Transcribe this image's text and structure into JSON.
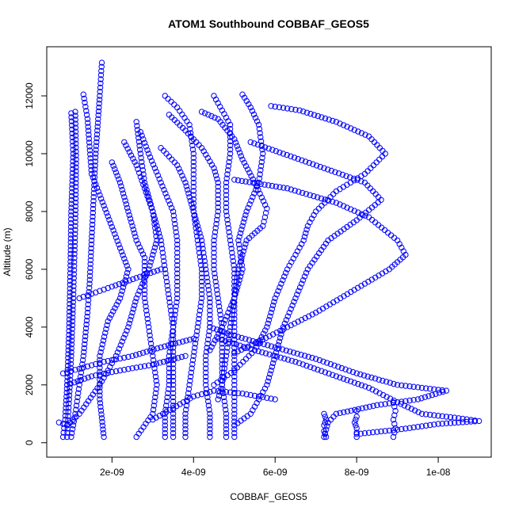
{
  "chart_data": {
    "type": "scatter",
    "title": "ATOM1 Southbound COBBAF_GEOS5",
    "xlabel": "COBBAF_GEOS5",
    "ylabel": "Altitude (m)",
    "xlim": [
      4e-10,
      1.13e-08
    ],
    "ylim": [
      -500,
      13700
    ],
    "xticks": [
      2e-09,
      4e-09,
      6e-09,
      8e-09,
      1e-08
    ],
    "xtick_labels": [
      "2e-09",
      "4e-09",
      "6e-09",
      "8e-09",
      "1e-08"
    ],
    "yticks": [
      0,
      2000,
      4000,
      6000,
      8000,
      10000,
      12000
    ],
    "ytick_labels": [
      "0",
      "2000",
      "4000",
      "6000",
      "8000",
      "10000",
      "12000"
    ],
    "marker_color": "#0000ff",
    "marker": "open-circle",
    "profiles": [
      {
        "points": [
          [
            1.75e-09,
            13150
          ],
          [
            1.7e-09,
            12000
          ],
          [
            1.6e-09,
            10000
          ],
          [
            1.55e-09,
            8500
          ],
          [
            1.5e-09,
            7000
          ],
          [
            1.45e-09,
            5500
          ],
          [
            1.4e-09,
            4500
          ],
          [
            1.3e-09,
            3000
          ],
          [
            1.2e-09,
            2000
          ],
          [
            1.1e-09,
            1000
          ],
          [
            1e-09,
            200
          ]
        ]
      },
      {
        "points": [
          [
            1e-09,
            11400
          ],
          [
            1.05e-09,
            10000
          ],
          [
            1e-09,
            8000
          ],
          [
            9.8e-10,
            6000
          ],
          [
            9.5e-10,
            4000
          ],
          [
            9e-10,
            2000
          ],
          [
            8.5e-10,
            800
          ],
          [
            8e-10,
            200
          ]
        ]
      },
      {
        "points": [
          [
            1.1e-09,
            11450
          ],
          [
            1.12e-09,
            9800
          ],
          [
            1.1e-09,
            7500
          ],
          [
            1.05e-09,
            5000
          ],
          [
            1e-09,
            3000
          ],
          [
            9.5e-10,
            1500
          ],
          [
            9e-10,
            200
          ]
        ]
      },
      {
        "points": [
          [
            1.3e-09,
            12050
          ],
          [
            1.4e-09,
            11200
          ],
          [
            1.5e-09,
            9300
          ],
          [
            1.8e-09,
            8200
          ],
          [
            2.1e-09,
            7100
          ],
          [
            2.4e-09,
            6000
          ],
          [
            2.2e-09,
            5000
          ],
          [
            1.9e-09,
            4200
          ],
          [
            1.7e-09,
            3000
          ],
          [
            1.7e-09,
            1500
          ],
          [
            1.8e-09,
            200
          ]
        ]
      },
      {
        "points": [
          [
            2e-09,
            9700
          ],
          [
            2.2e-09,
            9000
          ],
          [
            2.4e-09,
            8000
          ],
          [
            2.6e-09,
            7000
          ],
          [
            2.8e-09,
            6400
          ],
          [
            2.8e-09,
            5000
          ],
          [
            2.9e-09,
            4000
          ],
          [
            3e-09,
            3000
          ],
          [
            3.1e-09,
            2000
          ],
          [
            3e-09,
            1000
          ],
          [
            2.6e-09,
            200
          ]
        ]
      },
      {
        "points": [
          [
            2.3e-09,
            10400
          ],
          [
            2.6e-09,
            9600
          ],
          [
            2.8e-09,
            8800
          ],
          [
            3e-09,
            8000
          ],
          [
            3.1e-09,
            7000
          ],
          [
            2.9e-09,
            6000
          ],
          [
            2.6e-09,
            5000
          ],
          [
            2.4e-09,
            4000
          ],
          [
            2.1e-09,
            3000
          ],
          [
            1.7e-09,
            2000
          ],
          [
            1.2e-09,
            1000
          ],
          [
            9e-10,
            600
          ],
          [
            7e-10,
            700
          ]
        ]
      },
      {
        "points": [
          [
            2.6e-09,
            11100
          ],
          [
            2.7e-09,
            10000
          ],
          [
            2.8e-09,
            9000
          ],
          [
            3e-09,
            8000
          ],
          [
            3.2e-09,
            7000
          ],
          [
            3.3e-09,
            6000
          ],
          [
            3.4e-09,
            5000
          ],
          [
            3.5e-09,
            4000
          ],
          [
            3.4e-09,
            3000
          ],
          [
            3.4e-09,
            2000
          ],
          [
            3.3e-09,
            1000
          ],
          [
            3.3e-09,
            200
          ]
        ]
      },
      {
        "points": [
          [
            2.7e-09,
            10750
          ],
          [
            2.9e-09,
            10000
          ],
          [
            3.2e-09,
            9000
          ],
          [
            3.5e-09,
            8000
          ],
          [
            3.6e-09,
            7000
          ],
          [
            3.6e-09,
            6000
          ],
          [
            3.6e-09,
            5000
          ],
          [
            3.5e-09,
            4000
          ],
          [
            3.5e-09,
            3000
          ],
          [
            3.5e-09,
            2000
          ],
          [
            3.5e-09,
            1000
          ],
          [
            3.5e-09,
            200
          ]
        ]
      },
      {
        "points": [
          [
            3.3e-09,
            12000
          ],
          [
            3.6e-09,
            11600
          ],
          [
            3.9e-09,
            11000
          ],
          [
            4e-09,
            10000
          ],
          [
            4e-09,
            9000
          ],
          [
            4e-09,
            8000
          ],
          [
            4.1e-09,
            7000
          ],
          [
            4.2e-09,
            6000
          ],
          [
            4.2e-09,
            5000
          ],
          [
            4.1e-09,
            4000
          ],
          [
            4e-09,
            3000
          ],
          [
            3.9e-09,
            2000
          ],
          [
            3.8e-09,
            1000
          ],
          [
            3.8e-09,
            200
          ]
        ]
      },
      {
        "points": [
          [
            3.2e-09,
            10200
          ],
          [
            3.6e-09,
            9600
          ],
          [
            3.8e-09,
            9000
          ],
          [
            4e-09,
            8000
          ],
          [
            4.2e-09,
            7000
          ],
          [
            4.3e-09,
            6000
          ],
          [
            4.4e-09,
            5000
          ],
          [
            4.4e-09,
            4000
          ],
          [
            4.3e-09,
            3000
          ],
          [
            4.3e-09,
            2000
          ],
          [
            4.4e-09,
            1000
          ],
          [
            4.4e-09,
            200
          ]
        ]
      },
      {
        "points": [
          [
            3.4e-09,
            11350
          ],
          [
            3.8e-09,
            10800
          ],
          [
            4.2e-09,
            10200
          ],
          [
            4.5e-09,
            9500
          ],
          [
            4.6e-09,
            9000
          ],
          [
            4.6e-09,
            8000
          ],
          [
            4.5e-09,
            7000
          ],
          [
            4.5e-09,
            6000
          ],
          [
            4.6e-09,
            5000
          ],
          [
            4.7e-09,
            4000
          ],
          [
            4.7e-09,
            3000
          ],
          [
            4.7e-09,
            2000
          ],
          [
            4.8e-09,
            1000
          ],
          [
            4.8e-09,
            200
          ]
        ]
      },
      {
        "points": [
          [
            4.5e-09,
            12000
          ],
          [
            4.7e-09,
            11500
          ],
          [
            4.9e-09,
            11000
          ],
          [
            4.9e-09,
            10000
          ],
          [
            4.8e-09,
            9000
          ],
          [
            4.8e-09,
            8000
          ],
          [
            4.9e-09,
            7000
          ],
          [
            5e-09,
            6000
          ],
          [
            5e-09,
            5000
          ],
          [
            4.9e-09,
            4000
          ],
          [
            4.8e-09,
            3000
          ],
          [
            4.7e-09,
            2000
          ],
          [
            4.6e-09,
            1500
          ]
        ]
      },
      {
        "points": [
          [
            4.2e-09,
            11450
          ],
          [
            4.6e-09,
            11200
          ],
          [
            5e-09,
            10500
          ],
          [
            5.2e-09,
            9800
          ],
          [
            5.5e-09,
            9000
          ],
          [
            5.8e-09,
            8100
          ],
          [
            5.7e-09,
            7500
          ],
          [
            5.3e-09,
            7000
          ],
          [
            5.1e-09,
            6000
          ],
          [
            5e-09,
            5000
          ],
          [
            5e-09,
            4000
          ],
          [
            5e-09,
            3000
          ],
          [
            5e-09,
            2000
          ],
          [
            5e-09,
            1000
          ],
          [
            5e-09,
            200
          ]
        ]
      },
      {
        "points": [
          [
            5.2e-09,
            12050
          ],
          [
            5.4e-09,
            11600
          ],
          [
            5.6e-09,
            11000
          ],
          [
            5.7e-09,
            10000
          ],
          [
            5.6e-09,
            9000
          ],
          [
            5.3e-09,
            8000
          ],
          [
            5.1e-09,
            7000
          ],
          [
            5.2e-09,
            6000
          ],
          [
            5e-09,
            5000
          ],
          [
            4.7e-09,
            4000
          ],
          [
            4.4e-09,
            3200
          ]
        ]
      },
      {
        "points": [
          [
            5.9e-09,
            11650
          ],
          [
            6.6e-09,
            11500
          ],
          [
            7.5e-09,
            11100
          ],
          [
            8.3e-09,
            10600
          ],
          [
            8.7e-09,
            10000
          ],
          [
            8.2e-09,
            9300
          ],
          [
            7.5e-09,
            8700
          ],
          [
            7e-09,
            8000
          ],
          [
            6.8e-09,
            7500
          ],
          [
            6.7e-09,
            7000
          ],
          [
            6.3e-09,
            6000
          ],
          [
            6e-09,
            5000
          ],
          [
            5.8e-09,
            4000
          ],
          [
            5.5e-09,
            3200
          ],
          [
            5e-09,
            2500
          ],
          [
            4.5e-09,
            2000
          ]
        ]
      },
      {
        "points": [
          [
            5.4e-09,
            10400
          ],
          [
            6.2e-09,
            10000
          ],
          [
            7.2e-09,
            9500
          ],
          [
            8.2e-09,
            9000
          ],
          [
            8.6e-09,
            8400
          ],
          [
            8e-09,
            7700
          ],
          [
            7.3e-09,
            7000
          ],
          [
            6.8e-09,
            6000
          ],
          [
            6.5e-09,
            5000
          ],
          [
            6.2e-09,
            4000
          ],
          [
            6e-09,
            3000
          ],
          [
            5.8e-09,
            2000
          ],
          [
            5.4e-09,
            1000
          ],
          [
            5e-09,
            600
          ]
        ]
      },
      {
        "points": [
          [
            5e-09,
            9100
          ],
          [
            6.3e-09,
            8800
          ],
          [
            7.5e-09,
            8300
          ],
          [
            8.3e-09,
            7800
          ],
          [
            9e-09,
            7000
          ],
          [
            9.2e-09,
            6500
          ],
          [
            8.8e-09,
            6000
          ],
          [
            8.2e-09,
            5500
          ],
          [
            7.6e-09,
            5000
          ],
          [
            7e-09,
            4500
          ],
          [
            6.3e-09,
            4000
          ],
          [
            5.6e-09,
            3500
          ],
          [
            5e-09,
            3100
          ]
        ]
      },
      {
        "points": [
          [
            4.4e-09,
            4000
          ],
          [
            5e-09,
            3700
          ],
          [
            6e-09,
            3300
          ],
          [
            7e-09,
            2900
          ],
          [
            8e-09,
            2400
          ],
          [
            9e-09,
            2000
          ],
          [
            1.02e-08,
            1800
          ],
          [
            9.5e-09,
            1500
          ],
          [
            8.5e-09,
            1300
          ],
          [
            7.5e-09,
            1000
          ],
          [
            7.3e-09,
            700
          ],
          [
            7.2e-09,
            200
          ]
        ]
      },
      {
        "points": [
          [
            4.6e-09,
            3600
          ],
          [
            5.5e-09,
            3200
          ],
          [
            6.5e-09,
            2800
          ],
          [
            7.5e-09,
            2300
          ],
          [
            8.3e-09,
            1900
          ],
          [
            9e-09,
            1400
          ],
          [
            9.6e-09,
            1000
          ],
          [
            1.05e-08,
            850
          ],
          [
            1.1e-08,
            750
          ],
          [
            1e-08,
            650
          ],
          [
            9e-09,
            450
          ],
          [
            8e-09,
            300
          ]
        ]
      },
      {
        "points": [
          [
            7.2e-09,
            1000
          ],
          [
            7.25e-09,
            800
          ],
          [
            7.2e-09,
            600
          ],
          [
            7.2e-09,
            400
          ],
          [
            7.25e-09,
            200
          ]
        ]
      },
      {
        "points": [
          [
            8e-09,
            1100
          ],
          [
            8e-09,
            900
          ],
          [
            7.95e-09,
            700
          ],
          [
            8e-09,
            500
          ],
          [
            8e-09,
            200
          ]
        ]
      },
      {
        "points": [
          [
            8.9e-09,
            1400
          ],
          [
            8.95e-09,
            1100
          ],
          [
            8.9e-09,
            800
          ],
          [
            8.95e-09,
            500
          ],
          [
            8.9e-09,
            200
          ]
        ]
      },
      {
        "points": [
          [
            8e-10,
            2400
          ],
          [
            1.3e-09,
            2600
          ],
          [
            1.8e-09,
            2800
          ],
          [
            2.5e-09,
            3000
          ],
          [
            3.2e-09,
            3300
          ],
          [
            4e-09,
            3600
          ]
        ]
      },
      {
        "points": [
          [
            9e-10,
            2000
          ],
          [
            1.5e-09,
            2300
          ],
          [
            2.2e-09,
            2500
          ],
          [
            3e-09,
            2700
          ],
          [
            3.8e-09,
            3000
          ]
        ]
      },
      {
        "points": [
          [
            1.2e-09,
            5000
          ],
          [
            1.6e-09,
            5200
          ],
          [
            2e-09,
            5400
          ],
          [
            2.6e-09,
            5700
          ],
          [
            3.2e-09,
            6000
          ]
        ]
      },
      {
        "points": [
          [
            3e-09,
            800
          ],
          [
            3.5e-09,
            1200
          ],
          [
            4e-09,
            1600
          ],
          [
            4.5e-09,
            1800
          ],
          [
            5.2e-09,
            1700
          ],
          [
            6e-09,
            1500
          ]
        ]
      }
    ]
  }
}
